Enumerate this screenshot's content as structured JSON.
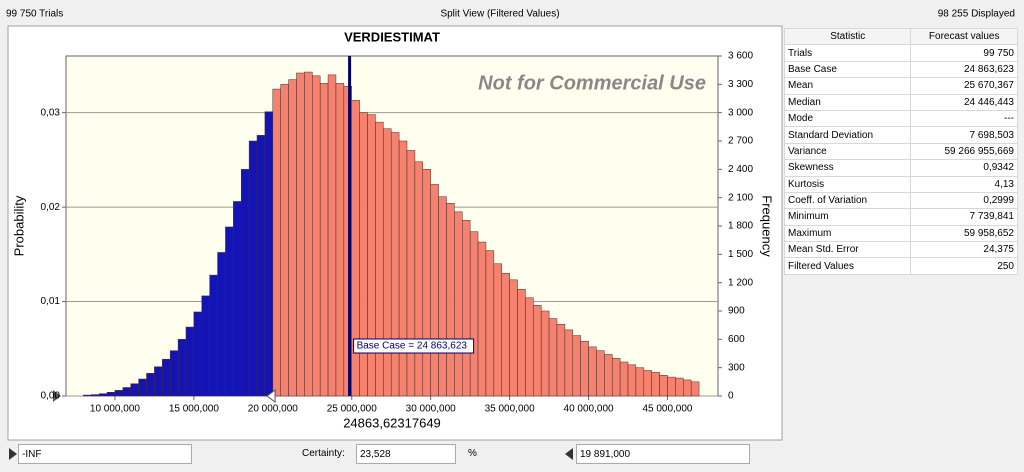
{
  "header": {
    "trials": "99 750 Trials",
    "view": "Split View (Filtered Values)",
    "displayed": "98 255 Displayed"
  },
  "chart_data": {
    "type": "histogram",
    "title": "VERDIESTIMAT",
    "watermark": "Not for Commercial Use",
    "ylabel": "Probability",
    "y2label": "Frequency",
    "bins": [
      8000000,
      8500000,
      9000000,
      9500000,
      10000000,
      10500000,
      11000000,
      11500000,
      12000000,
      12500000,
      13000000,
      13500000,
      14000000,
      14500000,
      15000000,
      15500000,
      16000000,
      16500000,
      17000000,
      17500000,
      18000000,
      18500000,
      19000000,
      19500000,
      20000000,
      20500000,
      21000000,
      21500000,
      22000000,
      22500000,
      23000000,
      23500000,
      24000000,
      24500000,
      25000000,
      25500000,
      26000000,
      26500000,
      27000000,
      27500000,
      28000000,
      28500000,
      29000000,
      29500000,
      30000000,
      30500000,
      31000000,
      31500000,
      32000000,
      32500000,
      33000000,
      33500000,
      34000000,
      34500000,
      35000000,
      35500000,
      36000000,
      36500000,
      37000000,
      37500000,
      38000000,
      38500000,
      39000000,
      39500000,
      40000000,
      40500000,
      41000000,
      41500000,
      42000000,
      42500000,
      43000000,
      43500000,
      44000000,
      44500000,
      45000000,
      45500000,
      46000000,
      46500000,
      47000000
    ],
    "series": [
      {
        "axis": "y2",
        "values": [
          10,
          15,
          25,
          40,
          60,
          90,
          130,
          180,
          240,
          310,
          390,
          480,
          600,
          730,
          890,
          1060,
          1280,
          1520,
          1790,
          2060,
          2400,
          2700,
          2760,
          3010,
          3250,
          3300,
          3350,
          3420,
          3430,
          3390,
          3310,
          3400,
          3310,
          3280,
          3130,
          3000,
          2980,
          2900,
          2830,
          2790,
          2700,
          2600,
          2480,
          2400,
          2240,
          2110,
          2040,
          1950,
          1860,
          1740,
          1630,
          1540,
          1400,
          1300,
          1230,
          1130,
          1040,
          960,
          900,
          820,
          760,
          700,
          640,
          580,
          520,
          480,
          440,
          400,
          360,
          330,
          300,
          270,
          250,
          220,
          200,
          190,
          170,
          150
        ]
      }
    ],
    "colors": [
      "#1414b4",
      "#f4826f"
    ],
    "xlim": [
      6900000,
      48200000
    ],
    "xticks": [
      {
        "value": 10000000,
        "label": "10 000,000"
      },
      {
        "value": 15000000,
        "label": "15 000,000"
      },
      {
        "value": 20000000,
        "label": "20 000,000"
      },
      {
        "value": 25000000,
        "label": "25 000,000"
      },
      {
        "value": 30000000,
        "label": "30 000,000"
      },
      {
        "value": 35000000,
        "label": "35 000,000"
      },
      {
        "value": 40000000,
        "label": "40 000,000"
      },
      {
        "value": 45000000,
        "label": "45 000,000"
      }
    ],
    "ylim": [
      0,
      0.036
    ],
    "yticks": [
      {
        "value": 0,
        "label": "0,00"
      },
      {
        "value": 0.01,
        "label": "0,01"
      },
      {
        "value": 0.02,
        "label": "0,02"
      },
      {
        "value": 0.03,
        "label": "0,03"
      }
    ],
    "y2lim": [
      0,
      3600
    ],
    "y2ticks": [
      0,
      300,
      600,
      900,
      {
        "value": 1200,
        "label": "1 200"
      },
      {
        "value": 1500,
        "label": "1 500"
      },
      {
        "value": 1800,
        "label": "1 800"
      },
      {
        "value": 2100,
        "label": "2 100"
      },
      {
        "value": 2400,
        "label": "2 400"
      },
      {
        "value": 2700,
        "label": "2 700"
      },
      {
        "value": 3000,
        "label": "3 000"
      },
      {
        "value": 3300,
        "label": "3 300"
      },
      {
        "value": 3600,
        "label": "3 600"
      }
    ],
    "grid": true,
    "base_case": {
      "value": 24863623,
      "label": "Base Case = 24 863,623"
    },
    "cursor_label": "24863,62317649"
  },
  "table": {
    "columns": [
      "Statistic",
      "Forecast values"
    ],
    "rows": [
      [
        "Trials",
        "99 750"
      ],
      [
        "Base Case",
        "24 863,623"
      ],
      [
        "Mean",
        "25 670,367"
      ],
      [
        "Median",
        "24 446,443"
      ],
      [
        "Mode",
        "---"
      ],
      [
        "Standard Deviation",
        "7 698,503"
      ],
      [
        "Variance",
        "59 266 955,669"
      ],
      [
        "Skewness",
        "0,9342"
      ],
      [
        "Kurtosis",
        "4,13"
      ],
      [
        "Coeff. of Variation",
        "0,2999"
      ],
      [
        "Minimum",
        "7 739,841"
      ],
      [
        "Maximum",
        "59 958,652"
      ],
      [
        "Mean Std. Error",
        "24,375"
      ],
      [
        "Filtered Values",
        "250"
      ]
    ]
  },
  "footer": {
    "lower": "-INF",
    "certainty_label": "Certainty:",
    "certainty": {
      "value": 23.528,
      "label": "23,528"
    },
    "unit": "%",
    "upper": {
      "value": 19891000,
      "label": "19 891,000"
    }
  }
}
